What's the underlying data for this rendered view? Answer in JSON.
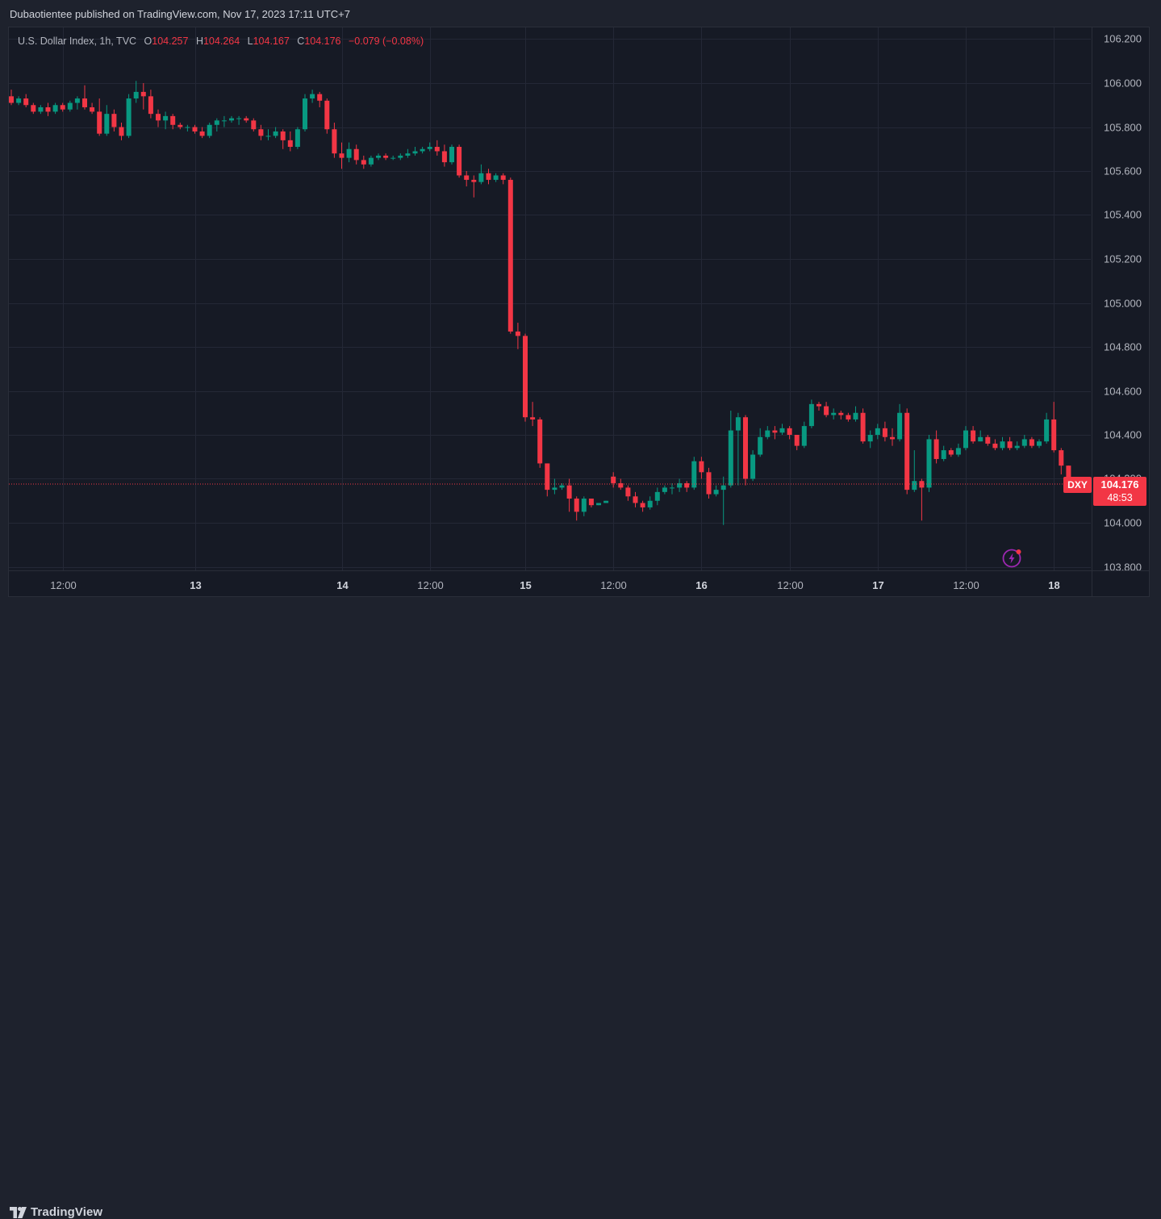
{
  "header": {
    "publish_text": "Dubaotientee published on TradingView.com, Nov 17, 2023 17:11 UTC+7"
  },
  "legend": {
    "symbol": "U.S. Dollar Index, 1h, TVC",
    "o_label": "O",
    "o_value": "104.257",
    "h_label": "H",
    "h_value": "104.264",
    "l_label": "L",
    "l_value": "104.167",
    "c_label": "C",
    "c_value": "104.176",
    "change": "−0.079 (−0.08%)"
  },
  "price_tag": {
    "symbol": "DXY",
    "price": "104.176",
    "countdown": "48:53"
  },
  "footer": {
    "brand": "TradingView"
  },
  "colors": {
    "up": "#089981",
    "down": "#f23645",
    "background": "#161a25",
    "grid": "#242836",
    "text": "#b2b5be"
  },
  "icons": {
    "logo": "tradingview-logo-icon",
    "alert": "lightning-bolt-icon"
  },
  "chart_data": {
    "type": "candlestick",
    "title": "U.S. Dollar Index, 1h, TVC",
    "ylim": [
      103.75,
      106.25
    ],
    "y_ticks": [
      "106.200",
      "106.000",
      "105.800",
      "105.600",
      "105.400",
      "105.200",
      "105.000",
      "104.800",
      "104.600",
      "104.400",
      "104.200",
      "104.000",
      "103.800"
    ],
    "x_ticks": [
      {
        "label": "12:00",
        "index": 7,
        "bold": false
      },
      {
        "label": "13",
        "index": 25,
        "bold": true
      },
      {
        "label": "14",
        "index": 45,
        "bold": true
      },
      {
        "label": "12:00",
        "index": 57,
        "bold": false
      },
      {
        "label": "15",
        "index": 70,
        "bold": true
      },
      {
        "label": "12:00",
        "index": 82,
        "bold": false
      },
      {
        "label": "16",
        "index": 94,
        "bold": true
      },
      {
        "label": "12:00",
        "index": 106,
        "bold": false
      },
      {
        "label": "17",
        "index": 118,
        "bold": true
      },
      {
        "label": "12:00",
        "index": 130,
        "bold": false
      },
      {
        "label": "18",
        "index": 142,
        "bold": true
      }
    ],
    "last_price": 104.176,
    "candles": [
      [
        105.94,
        105.91,
        105.97,
        105.9
      ],
      [
        105.91,
        105.93,
        105.94,
        105.9
      ],
      [
        105.93,
        105.9,
        105.95,
        105.89
      ],
      [
        105.9,
        105.87,
        105.91,
        105.86
      ],
      [
        105.87,
        105.89,
        105.9,
        105.86
      ],
      [
        105.89,
        105.87,
        105.91,
        105.85
      ],
      [
        105.87,
        105.9,
        105.91,
        105.86
      ],
      [
        105.9,
        105.88,
        105.91,
        105.87
      ],
      [
        105.88,
        105.91,
        105.92,
        105.87
      ],
      [
        105.91,
        105.93,
        105.94,
        105.88
      ],
      [
        105.93,
        105.89,
        105.99,
        105.88
      ],
      [
        105.89,
        105.87,
        105.91,
        105.86
      ],
      [
        105.87,
        105.77,
        105.93,
        105.76
      ],
      [
        105.77,
        105.86,
        105.9,
        105.76
      ],
      [
        105.86,
        105.8,
        105.88,
        105.78
      ],
      [
        105.8,
        105.76,
        105.82,
        105.74
      ],
      [
        105.76,
        105.93,
        105.95,
        105.75
      ],
      [
        105.93,
        105.96,
        106.01,
        105.91
      ],
      [
        105.96,
        105.94,
        106.0,
        105.88
      ],
      [
        105.94,
        105.86,
        105.97,
        105.84
      ],
      [
        105.86,
        105.83,
        105.88,
        105.8
      ],
      [
        105.83,
        105.85,
        105.87,
        105.79
      ],
      [
        105.85,
        105.81,
        105.86,
        105.79
      ],
      [
        105.81,
        105.8,
        105.82,
        105.79
      ],
      [
        105.8,
        105.8,
        105.81,
        105.78
      ],
      [
        105.8,
        105.78,
        105.81,
        105.77
      ],
      [
        105.78,
        105.76,
        105.8,
        105.75
      ],
      [
        105.76,
        105.81,
        105.82,
        105.75
      ],
      [
        105.81,
        105.83,
        105.84,
        105.78
      ],
      [
        105.83,
        105.83,
        105.85,
        105.8
      ],
      [
        105.83,
        105.84,
        105.85,
        105.82
      ],
      [
        105.84,
        105.84,
        105.85,
        105.81
      ],
      [
        105.84,
        105.83,
        105.85,
        105.82
      ],
      [
        105.83,
        105.79,
        105.84,
        105.78
      ],
      [
        105.79,
        105.76,
        105.81,
        105.74
      ],
      [
        105.76,
        105.76,
        105.79,
        105.74
      ],
      [
        105.76,
        105.78,
        105.8,
        105.75
      ],
      [
        105.78,
        105.74,
        105.79,
        105.7
      ],
      [
        105.74,
        105.71,
        105.78,
        105.69
      ],
      [
        105.71,
        105.79,
        105.8,
        105.7
      ],
      [
        105.79,
        105.93,
        105.95,
        105.78
      ],
      [
        105.93,
        105.95,
        105.97,
        105.91
      ],
      [
        105.95,
        105.92,
        105.96,
        105.89
      ],
      [
        105.92,
        105.79,
        105.93,
        105.77
      ],
      [
        105.79,
        105.68,
        105.82,
        105.66
      ],
      [
        105.68,
        105.66,
        105.73,
        105.61
      ],
      [
        105.66,
        105.7,
        105.73,
        105.64
      ],
      [
        105.7,
        105.65,
        105.72,
        105.63
      ],
      [
        105.65,
        105.63,
        105.67,
        105.61
      ],
      [
        105.63,
        105.66,
        105.67,
        105.62
      ],
      [
        105.66,
        105.67,
        105.68,
        105.65
      ],
      [
        105.67,
        105.66,
        105.68,
        105.65
      ],
      [
        105.66,
        105.66,
        105.67,
        105.65
      ],
      [
        105.66,
        105.67,
        105.68,
        105.65
      ],
      [
        105.67,
        105.68,
        105.7,
        105.66
      ],
      [
        105.68,
        105.69,
        105.71,
        105.67
      ],
      [
        105.69,
        105.7,
        105.71,
        105.68
      ],
      [
        105.7,
        105.71,
        105.73,
        105.69
      ],
      [
        105.71,
        105.69,
        105.74,
        105.67
      ],
      [
        105.69,
        105.64,
        105.72,
        105.62
      ],
      [
        105.64,
        105.71,
        105.72,
        105.63
      ],
      [
        105.71,
        105.58,
        105.72,
        105.57
      ],
      [
        105.58,
        105.56,
        105.6,
        105.53
      ],
      [
        105.56,
        105.55,
        105.58,
        105.48
      ],
      [
        105.55,
        105.59,
        105.63,
        105.54
      ],
      [
        105.59,
        105.56,
        105.61,
        105.54
      ],
      [
        105.56,
        105.58,
        105.59,
        105.55
      ],
      [
        105.58,
        105.56,
        105.59,
        105.54
      ],
      [
        105.56,
        104.87,
        105.57,
        104.86
      ],
      [
        104.87,
        104.85,
        104.91,
        104.79
      ],
      [
        104.85,
        104.48,
        104.86,
        104.46
      ],
      [
        104.48,
        104.47,
        104.55,
        104.44
      ],
      [
        104.47,
        104.27,
        104.48,
        104.25
      ],
      [
        104.27,
        104.15,
        104.27,
        104.12
      ],
      [
        104.15,
        104.16,
        104.2,
        104.13
      ],
      [
        104.16,
        104.17,
        104.18,
        104.15
      ],
      [
        104.17,
        104.11,
        104.2,
        104.05
      ],
      [
        104.11,
        104.05,
        104.12,
        104.01
      ],
      [
        104.05,
        104.11,
        104.12,
        104.03
      ],
      [
        104.11,
        104.08,
        104.1,
        104.07
      ],
      [
        104.08,
        104.09,
        104.09,
        104.08
      ],
      [
        104.09,
        104.1,
        104.1,
        104.09
      ],
      [
        104.21,
        104.18,
        104.23,
        104.16
      ],
      [
        104.18,
        104.16,
        104.2,
        104.15
      ],
      [
        104.16,
        104.12,
        104.17,
        104.1
      ],
      [
        104.12,
        104.09,
        104.14,
        104.07
      ],
      [
        104.09,
        104.07,
        104.1,
        104.05
      ],
      [
        104.07,
        104.1,
        104.12,
        104.06
      ],
      [
        104.1,
        104.14,
        104.16,
        104.08
      ],
      [
        104.14,
        104.16,
        104.17,
        104.13
      ],
      [
        104.16,
        104.16,
        104.18,
        104.13
      ],
      [
        104.16,
        104.18,
        104.2,
        104.14
      ],
      [
        104.18,
        104.16,
        104.19,
        104.14
      ],
      [
        104.16,
        104.28,
        104.3,
        104.15
      ],
      [
        104.28,
        104.23,
        104.3,
        104.2
      ],
      [
        104.23,
        104.13,
        104.25,
        104.11
      ],
      [
        104.13,
        104.15,
        104.17,
        104.12
      ],
      [
        104.15,
        104.17,
        104.21,
        103.99
      ],
      [
        104.17,
        104.42,
        104.51,
        104.16
      ],
      [
        104.42,
        104.48,
        104.5,
        104.17
      ],
      [
        104.48,
        104.2,
        104.49,
        104.17
      ],
      [
        104.2,
        104.31,
        104.33,
        104.19
      ],
      [
        104.31,
        104.39,
        104.43,
        104.3
      ],
      [
        104.39,
        104.42,
        104.44,
        104.38
      ],
      [
        104.42,
        104.41,
        104.44,
        104.38
      ],
      [
        104.41,
        104.43,
        104.45,
        104.4
      ],
      [
        104.43,
        104.4,
        104.44,
        104.38
      ],
      [
        104.4,
        104.35,
        104.4,
        104.33
      ],
      [
        104.35,
        104.44,
        104.46,
        104.34
      ],
      [
        104.44,
        104.54,
        104.56,
        104.43
      ],
      [
        104.54,
        104.53,
        104.55,
        104.51
      ],
      [
        104.53,
        104.49,
        104.55,
        104.48
      ],
      [
        104.49,
        104.5,
        104.52,
        104.47
      ],
      [
        104.5,
        104.49,
        104.51,
        104.47
      ],
      [
        104.49,
        104.47,
        104.5,
        104.46
      ],
      [
        104.47,
        104.5,
        104.53,
        104.46
      ],
      [
        104.5,
        104.37,
        104.52,
        104.36
      ],
      [
        104.37,
        104.4,
        104.42,
        104.34
      ],
      [
        104.4,
        104.43,
        104.45,
        104.38
      ],
      [
        104.43,
        104.39,
        104.46,
        104.37
      ],
      [
        104.39,
        104.38,
        104.43,
        104.35
      ],
      [
        104.38,
        104.5,
        104.54,
        104.37
      ],
      [
        104.5,
        104.15,
        104.52,
        104.13
      ],
      [
        104.15,
        104.19,
        104.33,
        104.14
      ],
      [
        104.19,
        104.16,
        104.2,
        104.01
      ],
      [
        104.16,
        104.38,
        104.4,
        104.14
      ],
      [
        104.38,
        104.29,
        104.42,
        104.27
      ],
      [
        104.29,
        104.33,
        104.35,
        104.28
      ],
      [
        104.33,
        104.31,
        104.34,
        104.3
      ],
      [
        104.31,
        104.34,
        104.36,
        104.3
      ],
      [
        104.34,
        104.42,
        104.44,
        104.33
      ],
      [
        104.42,
        104.37,
        104.44,
        104.36
      ],
      [
        104.37,
        104.39,
        104.42,
        104.37
      ],
      [
        104.39,
        104.36,
        104.4,
        104.35
      ],
      [
        104.36,
        104.34,
        104.38,
        104.33
      ],
      [
        104.34,
        104.37,
        104.39,
        104.33
      ],
      [
        104.37,
        104.34,
        104.39,
        104.33
      ],
      [
        104.34,
        104.35,
        104.37,
        104.33
      ],
      [
        104.35,
        104.38,
        104.4,
        104.34
      ],
      [
        104.38,
        104.35,
        104.39,
        104.34
      ],
      [
        104.35,
        104.37,
        104.38,
        104.34
      ],
      [
        104.37,
        104.47,
        104.5,
        104.36
      ],
      [
        104.47,
        104.33,
        104.55,
        104.32
      ],
      [
        104.33,
        104.26,
        104.34,
        104.22
      ],
      [
        104.26,
        104.18,
        104.26,
        104.17
      ]
    ]
  }
}
